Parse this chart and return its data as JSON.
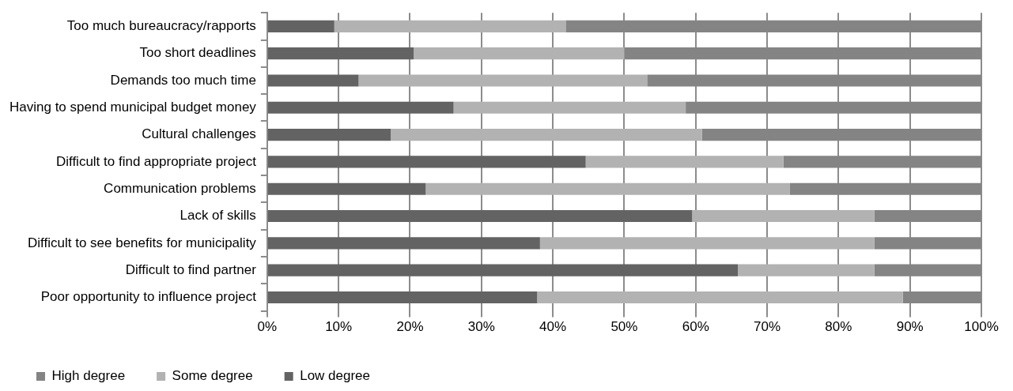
{
  "chart_data": {
    "type": "bar",
    "orientation": "horizontal",
    "stacked": true,
    "categories": [
      "Too much bureaucracy/rapports",
      "Too short deadlines",
      "Demands too much time",
      "Having to spend municipal budget money",
      "Cultural challenges",
      "Difficult to find appropriate project",
      "Communication problems",
      "Lack of skills",
      "Difficult to see benefits for municipality",
      "Difficult to find partner",
      "Poor opportunity to influence project"
    ],
    "series": [
      {
        "name": "Low degree",
        "color": "#636363",
        "values": [
          9.4,
          20.5,
          12.8,
          26.1,
          17.3,
          44.6,
          22.2,
          59.5,
          38.2,
          65.9,
          37.8
        ]
      },
      {
        "name": "Some degree",
        "color": "#b2b2b2",
        "values": [
          32.4,
          29.5,
          40.4,
          32.5,
          43.6,
          27.7,
          51.0,
          25.5,
          46.8,
          19.1,
          51.2
        ]
      },
      {
        "name": "High degree",
        "color": "#848484",
        "values": [
          58.2,
          50.0,
          46.8,
          41.4,
          39.1,
          27.7,
          26.8,
          15.0,
          15.0,
          15.0,
          11.0
        ]
      }
    ],
    "xlim": [
      0,
      100
    ],
    "xticks": [
      {
        "value": 0,
        "label": "0%"
      },
      {
        "value": 10,
        "label": "10%"
      },
      {
        "value": 20,
        "label": "20%"
      },
      {
        "value": 30,
        "label": "30%"
      },
      {
        "value": 40,
        "label": "40%"
      },
      {
        "value": 50,
        "label": "50%"
      },
      {
        "value": 60,
        "label": "60%"
      },
      {
        "value": 70,
        "label": "70%"
      },
      {
        "value": 80,
        "label": "80%"
      },
      {
        "value": 90,
        "label": "90%"
      },
      {
        "value": 100,
        "label": "100%"
      }
    ],
    "grid": "x",
    "legend": "bottom left"
  }
}
